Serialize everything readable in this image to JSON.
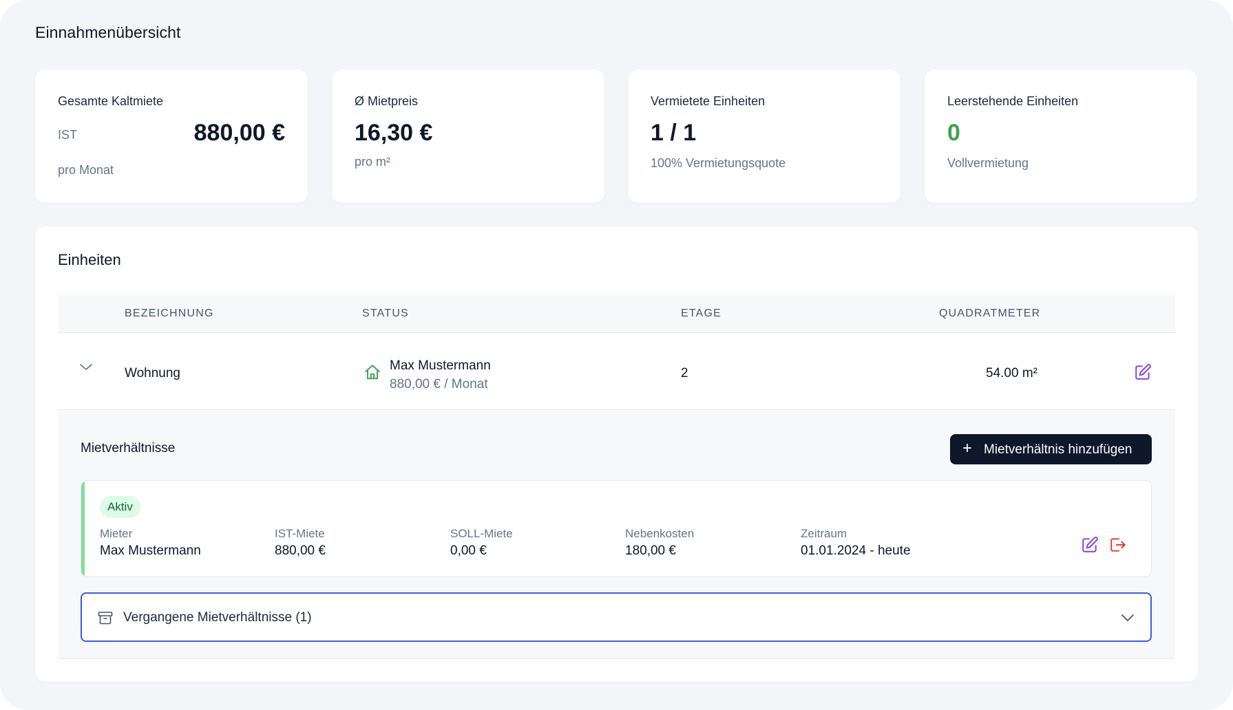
{
  "page": {
    "title": "Einnahmenübersicht"
  },
  "stats": [
    {
      "label": "Gesamte Kaltmiete",
      "tag": "IST",
      "value": "880,00 €",
      "sub": "pro Monat"
    },
    {
      "label": "Ø Mietpreis",
      "value": "16,30 €",
      "sub": "pro m²"
    },
    {
      "label": "Vermietete Einheiten",
      "value": "1 / 1",
      "sub": "100% Vermietungsquote"
    },
    {
      "label": "Leerstehende Einheiten",
      "value": "0",
      "sub": "Vollvermietung",
      "value_color": "#3fa34d"
    }
  ],
  "units": {
    "title": "Einheiten",
    "columns": [
      "BEZEICHNUNG",
      "STATUS",
      "ETAGE",
      "QUADRATMETER"
    ],
    "rows": [
      {
        "name": "Wohnung",
        "tenant": "Max Mustermann",
        "rent": "880,00 € / Monat",
        "floor": "2",
        "area": "54.00 m²",
        "status_icon": "house-icon"
      }
    ]
  },
  "leases": {
    "title": "Mietverhältnisse",
    "add_label": "Mietverhältnis hinzufügen",
    "active": {
      "badge": "Aktiv",
      "fields": [
        {
          "label": "Mieter",
          "value": "Max Mustermann"
        },
        {
          "label": "IST-Miete",
          "value": "880,00 €"
        },
        {
          "label": "SOLL-Miete",
          "value": "0,00 €"
        },
        {
          "label": "Nebenkosten",
          "value": "180,00 €"
        },
        {
          "label": "Zeitraum",
          "value": "01.01.2024 - heute"
        }
      ]
    },
    "past_label": "Vergangene Mietverhältnisse (1)"
  },
  "colors": {
    "accent_dark": "#0f172a",
    "success": "#3fa34d",
    "edit_icon": "#8b3fd9",
    "end_icon": "#dc3b3b",
    "focus_border": "#3b5bdb"
  }
}
